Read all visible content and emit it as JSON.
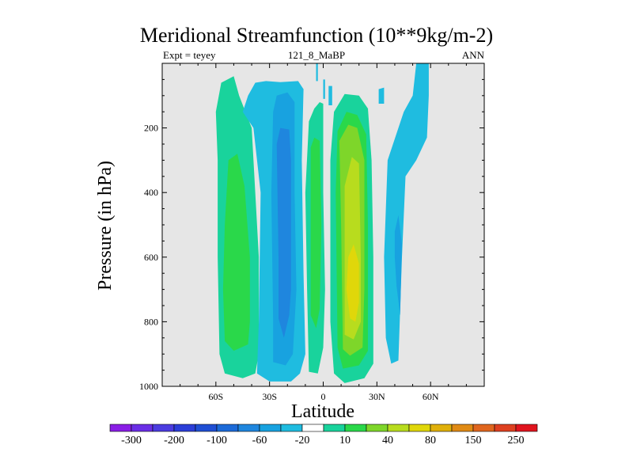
{
  "chart_data": {
    "type": "heatmap",
    "title": "Meridional Streamfunction (10**9kg/m-2)",
    "subtitle_left": "Expt = teyey",
    "subtitle_center": "121_8_MaBP",
    "subtitle_right": "ANN",
    "xlabel": "Latitude",
    "ylabel": "Pressure (in hPa)",
    "xlim": [
      -90,
      90
    ],
    "ylim": [
      1000,
      0
    ],
    "x_ticks": [
      {
        "value": -60,
        "label": "60S"
      },
      {
        "value": -30,
        "label": "30S"
      },
      {
        "value": 0,
        "label": "0"
      },
      {
        "value": 30,
        "label": "30N"
      },
      {
        "value": 60,
        "label": "60N"
      }
    ],
    "y_ticks": [
      {
        "value": 200,
        "label": "200"
      },
      {
        "value": 400,
        "label": "400"
      },
      {
        "value": 600,
        "label": "600"
      },
      {
        "value": 800,
        "label": "800"
      },
      {
        "value": 1000,
        "label": "1000"
      }
    ],
    "background_color": "#e6e6e6",
    "colorbar": {
      "colors": [
        "#8a1ee6",
        "#6a2ee6",
        "#4b3ce0",
        "#2b3ed8",
        "#1f4fd4",
        "#1c6ad8",
        "#1f86de",
        "#18a2e0",
        "#1fbce0",
        "#ffffff",
        "#19d39c",
        "#2ad84a",
        "#7ed62a",
        "#b8dc1e",
        "#e0d70a",
        "#e0b00a",
        "#e08a14",
        "#e0661e",
        "#de4020",
        "#e0141e"
      ],
      "labels": [
        "-300",
        "-200",
        "-100",
        "-60",
        "-20",
        "10",
        "40",
        "80",
        "150",
        "250"
      ]
    },
    "regions": [
      {
        "name": "sh-outer-cell",
        "color": "#19d39c",
        "points": [
          [
            -57,
            60
          ],
          [
            -50,
            40
          ],
          [
            -47,
            100
          ],
          [
            -40,
            200
          ],
          [
            -36,
            600
          ],
          [
            -36,
            900
          ],
          [
            -38,
            960
          ],
          [
            -45,
            975
          ],
          [
            -55,
            960
          ],
          [
            -58,
            900
          ],
          [
            -59,
            600
          ],
          [
            -59,
            300
          ],
          [
            -60,
            150
          ]
        ]
      },
      {
        "name": "sh-outer-cell-core",
        "color": "#2ad84a",
        "points": [
          [
            -55,
            500
          ],
          [
            -53,
            300
          ],
          [
            -48,
            280
          ],
          [
            -44,
            380
          ],
          [
            -41,
            600
          ],
          [
            -41,
            800
          ],
          [
            -42,
            870
          ],
          [
            -50,
            890
          ],
          [
            -55,
            860
          ],
          [
            -56,
            700
          ]
        ]
      },
      {
        "name": "sh-middle-cell",
        "color": "#1fbce0",
        "points": [
          [
            -42,
            100
          ],
          [
            -38,
            60
          ],
          [
            -32,
            55
          ],
          [
            -24,
            58
          ],
          [
            -14,
            55
          ],
          [
            -11,
            80
          ],
          [
            -12,
            300
          ],
          [
            -11,
            650
          ],
          [
            -10,
            900
          ],
          [
            -13,
            960
          ],
          [
            -18,
            985
          ],
          [
            -30,
            985
          ],
          [
            -37,
            960
          ],
          [
            -36,
            800
          ],
          [
            -35,
            400
          ],
          [
            -39,
            200
          ],
          [
            -45,
            150
          ]
        ]
      },
      {
        "name": "sh-middle-cell-mid",
        "color": "#18a2e0",
        "points": [
          [
            -28,
            150
          ],
          [
            -26,
            100
          ],
          [
            -20,
            90
          ],
          [
            -16,
            120
          ],
          [
            -16,
            400
          ],
          [
            -15,
            700
          ],
          [
            -17,
            900
          ],
          [
            -21,
            935
          ],
          [
            -28,
            925
          ],
          [
            -28,
            800
          ],
          [
            -29,
            400
          ]
        ]
      },
      {
        "name": "sh-middle-cell-core",
        "color": "#1f86de",
        "points": [
          [
            -26,
            250
          ],
          [
            -24,
            200
          ],
          [
            -19,
            205
          ],
          [
            -18,
            300
          ],
          [
            -18,
            700
          ],
          [
            -19,
            780
          ],
          [
            -22,
            850
          ],
          [
            -25,
            790
          ],
          [
            -25,
            600
          ]
        ]
      },
      {
        "name": "tropics-sh-strip",
        "color": "#19d39c",
        "points": [
          [
            -8,
            180
          ],
          [
            -5,
            140
          ],
          [
            -2,
            120
          ],
          [
            0,
            125
          ],
          [
            0,
            400
          ],
          [
            1,
            700
          ],
          [
            0,
            880
          ],
          [
            -3,
            960
          ],
          [
            -8,
            955
          ],
          [
            -9,
            700
          ],
          [
            -10,
            400
          ]
        ]
      },
      {
        "name": "tropics-sh-strip-core",
        "color": "#2ad84a",
        "points": [
          [
            -7,
            260
          ],
          [
            -5,
            230
          ],
          [
            -2,
            240
          ],
          [
            -1,
            500
          ],
          [
            -2,
            760
          ],
          [
            -4,
            820
          ],
          [
            -7,
            780
          ],
          [
            -7,
            500
          ]
        ]
      },
      {
        "name": "tropics-upper-cyan-a",
        "color": "#1fbce0",
        "points": [
          [
            -4,
            0
          ],
          [
            -3,
            0
          ],
          [
            -3,
            55
          ],
          [
            -4,
            55
          ]
        ]
      },
      {
        "name": "tropics-upper-cyan-b",
        "color": "#1fbce0",
        "points": [
          [
            0,
            50
          ],
          [
            1,
            50
          ],
          [
            1,
            110
          ],
          [
            0,
            110
          ]
        ]
      },
      {
        "name": "tropics-upper-cyan-c",
        "color": "#1fbce0",
        "points": [
          [
            3,
            70
          ],
          [
            5,
            70
          ],
          [
            5,
            130
          ],
          [
            3,
            130
          ]
        ]
      },
      {
        "name": "nh-hadley-cell",
        "color": "#19d39c",
        "points": [
          [
            6,
            150
          ],
          [
            12,
            95
          ],
          [
            20,
            100
          ],
          [
            25,
            140
          ],
          [
            27,
            300
          ],
          [
            28,
            600
          ],
          [
            28,
            930
          ],
          [
            23,
            975
          ],
          [
            12,
            990
          ],
          [
            6,
            960
          ],
          [
            4,
            800
          ],
          [
            4,
            300
          ]
        ]
      },
      {
        "name": "nh-hadley-cell-l2",
        "color": "#2ad84a",
        "points": [
          [
            8,
            210
          ],
          [
            13,
            150
          ],
          [
            19,
            160
          ],
          [
            24,
            220
          ],
          [
            25,
            500
          ],
          [
            25,
            890
          ],
          [
            20,
            935
          ],
          [
            11,
            945
          ],
          [
            8,
            880
          ],
          [
            7,
            400
          ]
        ]
      },
      {
        "name": "nh-hadley-cell-l3",
        "color": "#7ed62a",
        "points": [
          [
            9,
            240
          ],
          [
            14,
            190
          ],
          [
            19,
            200
          ],
          [
            23,
            300
          ],
          [
            23,
            700
          ],
          [
            22,
            880
          ],
          [
            15,
            905
          ],
          [
            11,
            885
          ],
          [
            10,
            500
          ]
        ]
      },
      {
        "name": "nh-hadley-cell-l4",
        "color": "#b8dc1e",
        "points": [
          [
            12,
            380
          ],
          [
            16,
            290
          ],
          [
            20,
            310
          ],
          [
            21,
            600
          ],
          [
            21,
            800
          ],
          [
            17,
            855
          ],
          [
            12,
            840
          ],
          [
            12,
            600
          ]
        ]
      },
      {
        "name": "nh-hadley-cell-core",
        "color": "#e0d70a",
        "points": [
          [
            14,
            600
          ],
          [
            17,
            560
          ],
          [
            20,
            620
          ],
          [
            20,
            740
          ],
          [
            18,
            800
          ],
          [
            15,
            790
          ],
          [
            13,
            700
          ]
        ]
      },
      {
        "name": "nh-ferrel-top",
        "color": "#1fbce0",
        "points": [
          [
            31,
            80
          ],
          [
            34,
            75
          ],
          [
            34,
            125
          ],
          [
            31,
            125
          ]
        ]
      },
      {
        "name": "nh-mid-cell",
        "color": "#1fbce0",
        "points": [
          [
            52,
            0
          ],
          [
            59,
            0
          ],
          [
            59,
            100
          ],
          [
            58,
            230
          ],
          [
            52,
            300
          ],
          [
            46,
            350
          ],
          [
            44,
            600
          ],
          [
            42,
            920
          ],
          [
            38,
            930
          ],
          [
            35,
            850
          ],
          [
            34,
            600
          ],
          [
            36,
            300
          ],
          [
            45,
            150
          ],
          [
            50,
            100
          ]
        ]
      },
      {
        "name": "nh-mid-cell-core",
        "color": "#18a2e0",
        "points": [
          [
            40,
            520
          ],
          [
            42,
            470
          ],
          [
            44,
            560
          ],
          [
            43,
            780
          ],
          [
            41,
            690
          ],
          [
            40,
            600
          ]
        ]
      }
    ]
  }
}
